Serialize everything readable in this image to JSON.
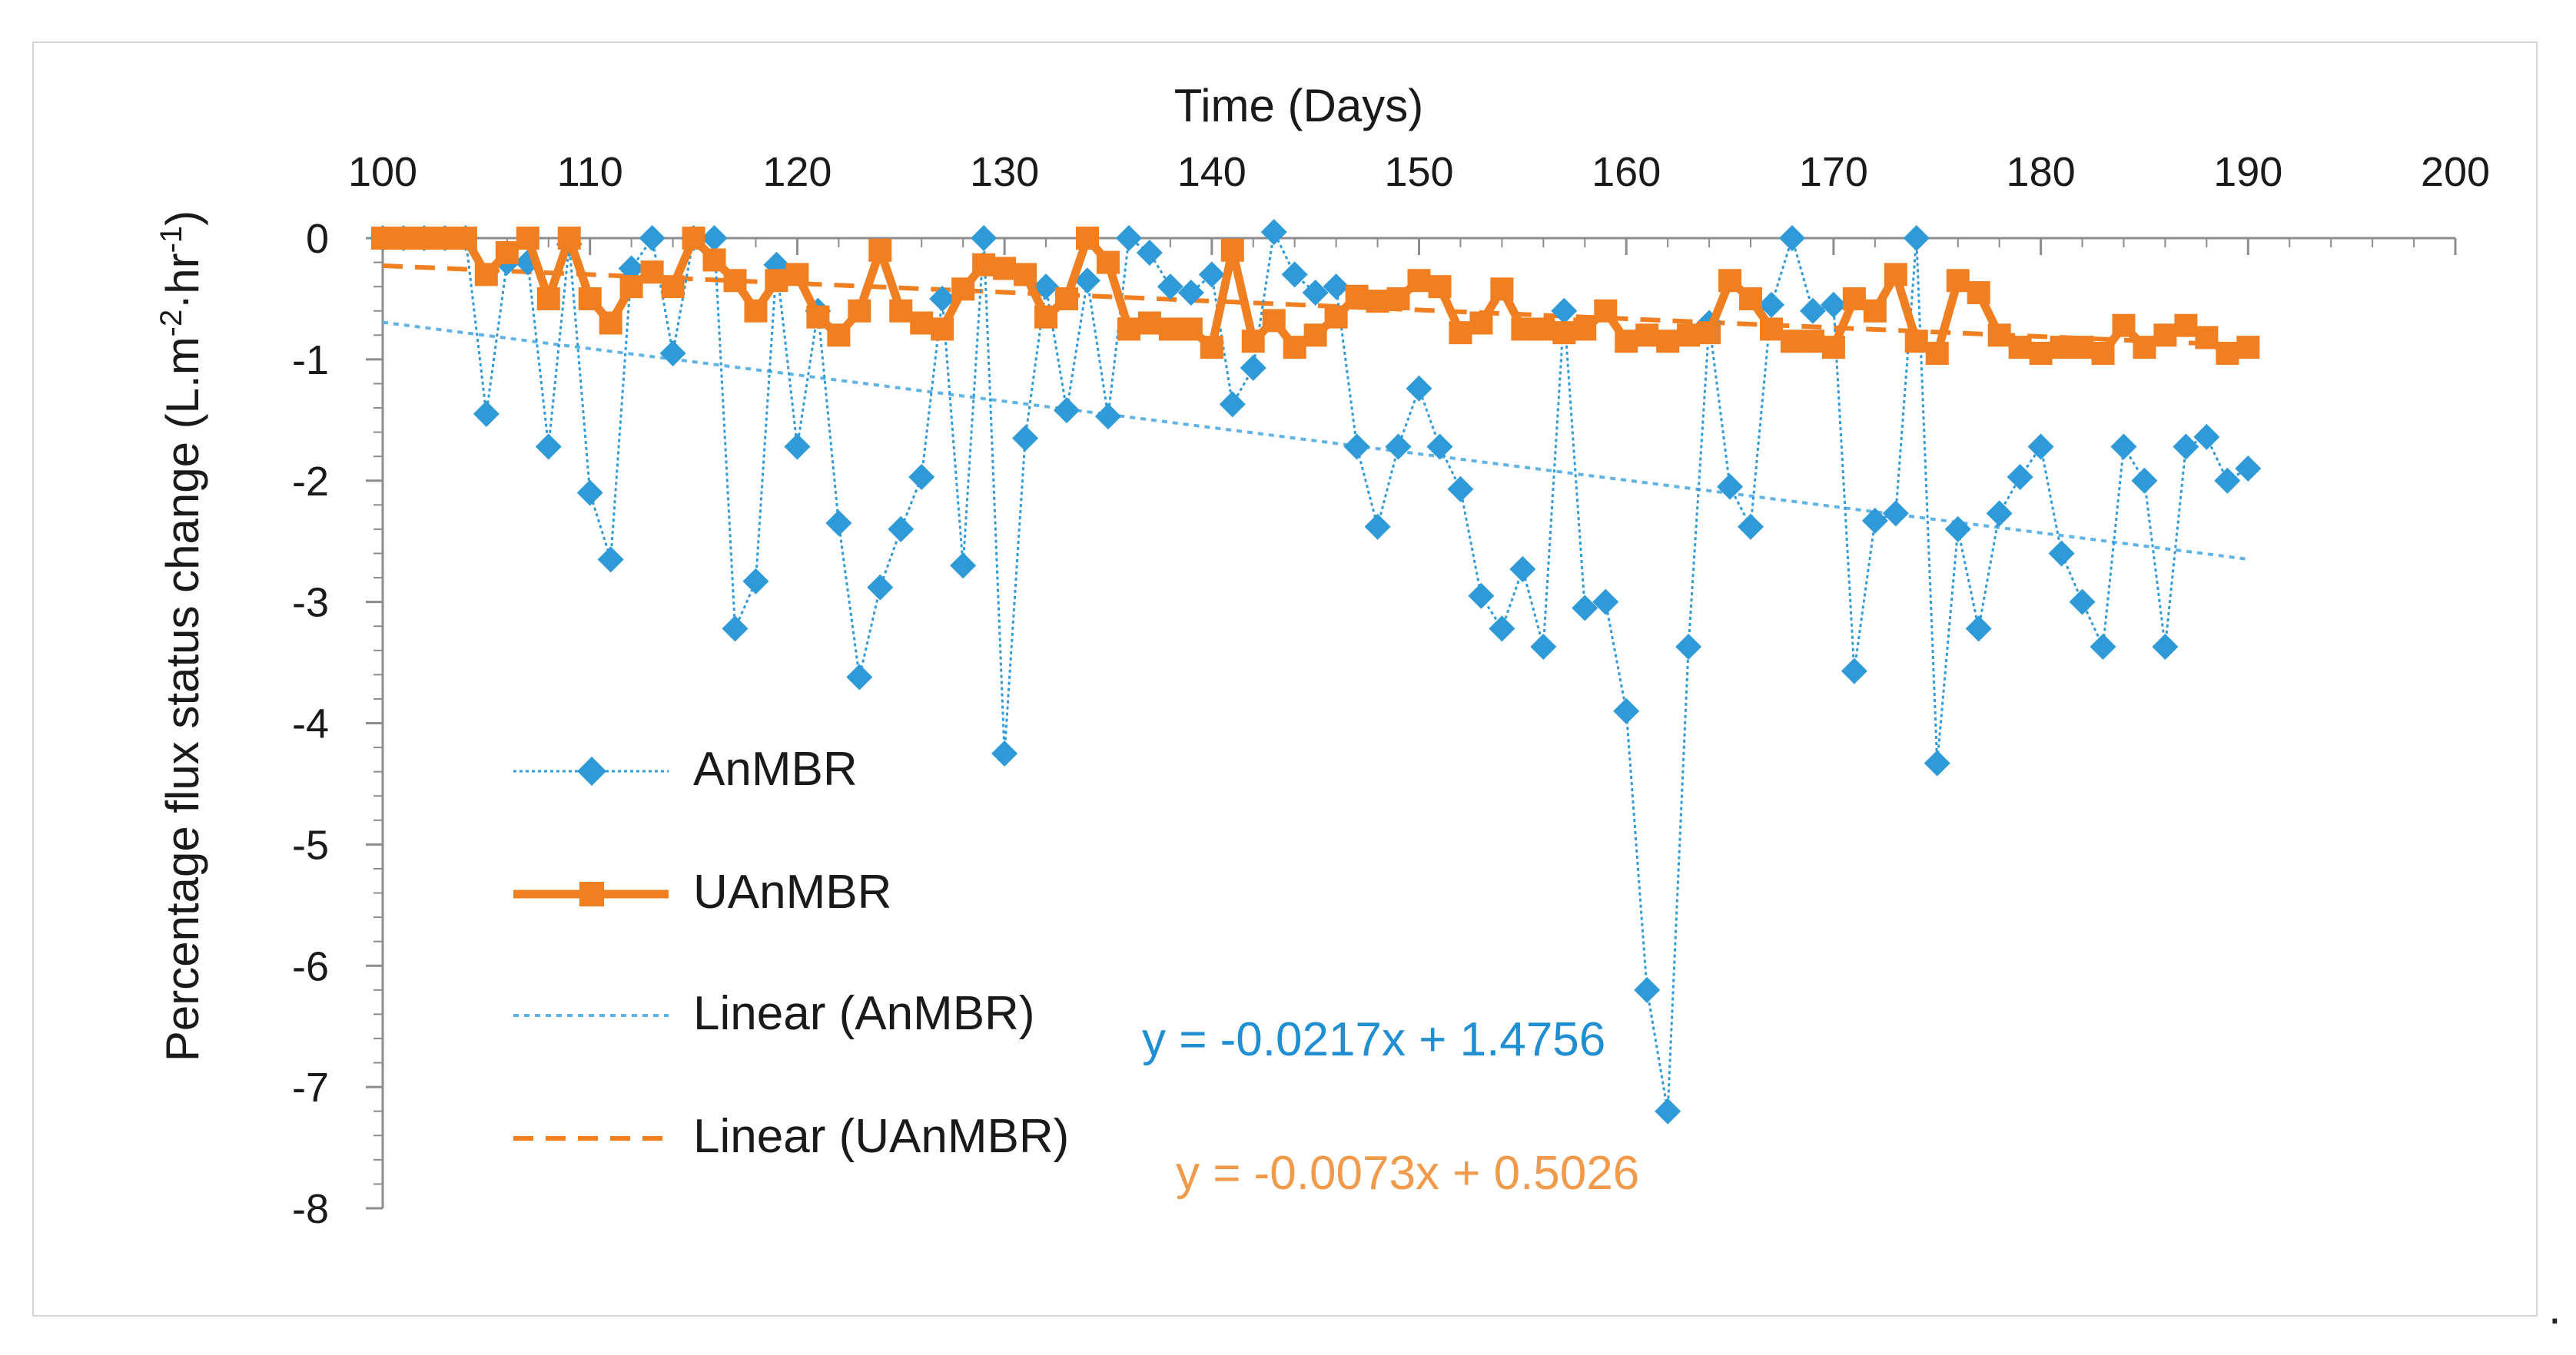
{
  "chart_data": {
    "type": "line",
    "title": "",
    "xlabel": "Time (Days)",
    "ylabel": "Percentage flux status change (L.m-2·hr-1)",
    "ylabel_main": "Percentage flux status change (L.m",
    "ylabel_unit_mid": "hr",
    "ylabel_sup_m": "-2",
    "ylabel_sup_h": "-1",
    "ylabel_close": ")",
    "xlim": [
      100,
      200
    ],
    "ylim": [
      -8,
      0
    ],
    "x_ticks": [
      "100",
      "110",
      "120",
      "130",
      "140",
      "150",
      "160",
      "170",
      "180",
      "190",
      "200"
    ],
    "y_ticks": [
      "0",
      "-1",
      "-2",
      "-3",
      "-4",
      "-5",
      "-6",
      "-7",
      "-8"
    ],
    "x_axis_position": "top",
    "grid": false,
    "legend_position": "lower-left",
    "series": [
      {
        "name": "AnMBR",
        "color": "#2e9ad8",
        "marker": "diamond",
        "line_style": "dotted",
        "x": [
          100,
          101,
          102,
          103,
          104,
          105,
          106,
          107,
          108,
          109,
          110,
          111,
          112,
          113,
          114,
          115,
          116,
          117,
          118,
          119,
          120,
          121,
          122,
          123,
          124,
          125,
          126,
          127,
          128,
          129,
          130,
          131,
          132,
          133,
          134,
          135,
          136,
          137,
          138,
          139,
          140,
          141,
          142,
          143,
          144,
          145,
          146,
          147,
          148,
          149,
          150,
          151,
          152,
          153,
          154,
          155,
          156,
          157,
          158,
          159,
          160,
          161,
          162,
          163,
          164,
          165,
          166,
          167,
          168,
          169,
          170,
          171,
          172,
          173,
          174,
          175,
          176,
          177,
          178,
          179,
          180,
          181,
          182,
          183,
          184,
          185,
          186,
          187,
          188,
          189,
          190
        ],
        "y": [
          0,
          0,
          0,
          0,
          0,
          -1.45,
          -0.2,
          -0.2,
          -1.72,
          -0.05,
          -2.1,
          -2.65,
          -0.25,
          0,
          -0.95,
          0,
          0,
          -3.22,
          -2.83,
          -0.22,
          -1.72,
          -0.6,
          -2.35,
          -3.62,
          -2.88,
          -2.4,
          -1.97,
          -0.5,
          -2.7,
          0,
          -4.25,
          -1.65,
          -0.4,
          -1.42,
          -0.35,
          -1.47,
          0,
          -0.12,
          -0.4,
          -0.45,
          -0.3,
          -1.37,
          -1.07,
          0.05,
          -0.3,
          -0.45,
          -0.4,
          -1.72,
          -2.38,
          -1.72,
          -1.24,
          -1.72,
          -2.07,
          -2.95,
          -3.22,
          -2.73,
          -3.37,
          -0.6,
          -3.05,
          -3.0,
          -3.9,
          -6.2,
          -7.2,
          -3.37,
          -0.7,
          -2.05,
          -2.38,
          -0.55,
          0,
          -0.6,
          -0.55,
          -3.57,
          -2.33,
          -2.27,
          0,
          -4.33,
          -2.4,
          -3.22,
          -2.27,
          -1.97,
          -1.72,
          -2.6,
          -3.0,
          -3.37,
          -1.72,
          -2.0,
          -3.37,
          -1.72,
          -1.64,
          -2.0,
          -1.9
        ]
      },
      {
        "name": "UAnMBR",
        "color": "#f07f22",
        "marker": "square",
        "line_style": "solid",
        "x": [
          100,
          101,
          102,
          103,
          104,
          105,
          106,
          107,
          108,
          109,
          110,
          111,
          112,
          113,
          114,
          115,
          116,
          117,
          118,
          119,
          120,
          121,
          122,
          123,
          124,
          125,
          126,
          127,
          128,
          129,
          130,
          131,
          132,
          133,
          134,
          135,
          136,
          137,
          138,
          139,
          140,
          141,
          142,
          143,
          144,
          145,
          146,
          147,
          148,
          149,
          150,
          151,
          152,
          153,
          154,
          155,
          156,
          157,
          158,
          159,
          160,
          161,
          162,
          163,
          164,
          165,
          166,
          167,
          168,
          169,
          170,
          171,
          172,
          173,
          174,
          175,
          176,
          177,
          178,
          179,
          180,
          181,
          182,
          183,
          184,
          185,
          186,
          187,
          188,
          189,
          190
        ],
        "y": [
          0,
          0,
          0,
          0,
          0,
          -0.3,
          -0.12,
          0,
          -0.5,
          0,
          -0.5,
          -0.7,
          -0.4,
          -0.28,
          -0.4,
          0,
          -0.18,
          -0.35,
          -0.6,
          -0.35,
          -0.3,
          -0.65,
          -0.8,
          -0.6,
          -0.1,
          -0.6,
          -0.7,
          -0.75,
          -0.42,
          -0.22,
          -0.25,
          -0.3,
          -0.65,
          -0.5,
          0,
          -0.2,
          -0.75,
          -0.7,
          -0.75,
          -0.75,
          -0.9,
          -0.1,
          -0.85,
          -0.68,
          -0.9,
          -0.8,
          -0.65,
          -0.48,
          -0.52,
          -0.5,
          -0.35,
          -0.4,
          -0.78,
          -0.7,
          -0.42,
          -0.75,
          -0.75,
          -0.78,
          -0.75,
          -0.6,
          -0.85,
          -0.8,
          -0.85,
          -0.8,
          -0.78,
          -0.35,
          -0.5,
          -0.75,
          -0.85,
          -0.85,
          -0.9,
          -0.5,
          -0.6,
          -0.3,
          -0.85,
          -0.95,
          -0.35,
          -0.45,
          -0.8,
          -0.9,
          -0.95,
          -0.9,
          -0.9,
          -0.95,
          -0.72,
          -0.9,
          -0.8,
          -0.72,
          -0.82,
          -0.95,
          -0.9
        ]
      }
    ],
    "trendlines": [
      {
        "name": "Linear (AnMBR)",
        "color": "#5fb3e6",
        "style": "dotted",
        "slope": -0.0217,
        "intercept": 1.4756,
        "x_range": [
          100,
          190
        ],
        "equation": "y = -0.0217x + 1.4756",
        "equation_color": "#1f8fd2"
      },
      {
        "name": "Linear (UAnMBR)",
        "color": "#f07f22",
        "style": "dashed",
        "slope": -0.0073,
        "intercept": 0.5026,
        "x_range": [
          100,
          190
        ],
        "equation": "y = -0.0073x + 0.5026",
        "equation_color": "#f29a4c"
      }
    ],
    "legend": [
      "AnMBR",
      "UAnMBR",
      "Linear (AnMBR)",
      "Linear (UAnMBR)"
    ]
  },
  "trailing_mark": "."
}
